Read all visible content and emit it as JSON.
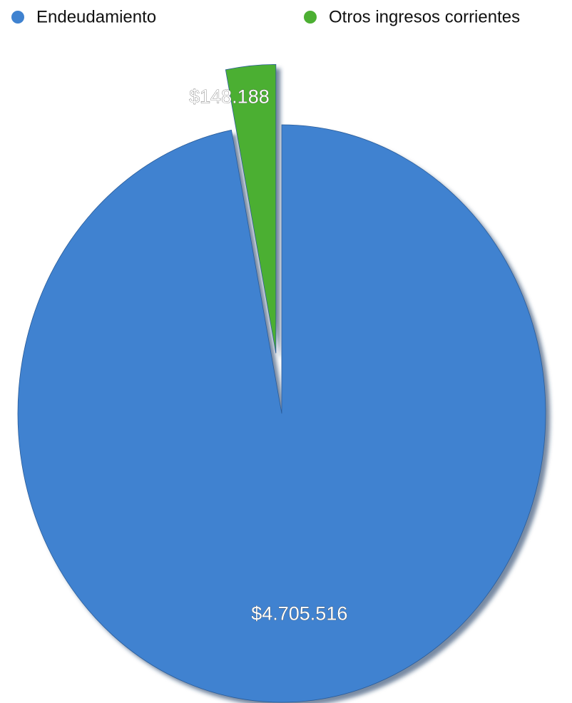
{
  "chart_data": {
    "type": "pie",
    "categories": [
      "Endeudamiento",
      "Otros ingresos corrientes"
    ],
    "values": [
      4705516,
      148188
    ],
    "value_labels": [
      "$4.705.516",
      "$148.188"
    ],
    "colors": [
      "#3f82d0",
      "#4caf32"
    ]
  }
}
